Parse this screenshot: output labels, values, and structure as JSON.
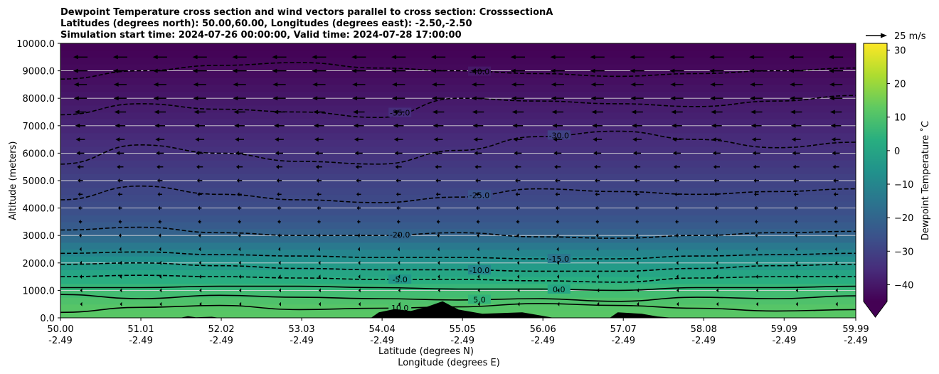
{
  "chart_data": {
    "type": "heatmap",
    "title_lines": [
      "Dewpoint Temperature cross section and wind vectors parallel to cross section: CrosssectionA",
      "Latitudes (degrees north): 50.00,60.00, Longitudes (degrees east): -2.50,-2.50",
      "Simulation start time: 2024-07-26 00:00:00, Valid time: 2024-07-28 17:00:00"
    ],
    "xlabel": "Latitude (degrees N)",
    "xlabel2": "Longitude (degrees E)",
    "ylabel": "Altitude (meters)",
    "xlim": [
      50.0,
      59.99
    ],
    "ylim": [
      0,
      10000
    ],
    "x_ticks": [
      {
        "lat": 50.0,
        "lat_label": "50.00",
        "lon_label": "-2.49"
      },
      {
        "lat": 51.01,
        "lat_label": "51.01",
        "lon_label": "-2.49"
      },
      {
        "lat": 52.02,
        "lat_label": "52.02",
        "lon_label": "-2.49"
      },
      {
        "lat": 53.03,
        "lat_label": "53.03",
        "lon_label": "-2.49"
      },
      {
        "lat": 54.04,
        "lat_label": "54.04",
        "lon_label": "-2.49"
      },
      {
        "lat": 55.05,
        "lat_label": "55.05",
        "lon_label": "-2.49"
      },
      {
        "lat": 56.06,
        "lat_label": "56.06",
        "lon_label": "-2.49"
      },
      {
        "lat": 57.07,
        "lat_label": "57.07",
        "lon_label": "-2.49"
      },
      {
        "lat": 58.08,
        "lat_label": "58.08",
        "lon_label": "-2.49"
      },
      {
        "lat": 59.09,
        "lat_label": "59.09",
        "lon_label": "-2.49"
      },
      {
        "lat": 59.99,
        "lat_label": "59.99",
        "lon_label": "-2.49"
      }
    ],
    "y_ticks": [
      {
        "value": 0,
        "label": "0.0"
      },
      {
        "value": 1000,
        "label": "1000.0"
      },
      {
        "value": 2000,
        "label": "2000.0"
      },
      {
        "value": 3000,
        "label": "3000.0"
      },
      {
        "value": 4000,
        "label": "4000.0"
      },
      {
        "value": 5000,
        "label": "5000.0"
      },
      {
        "value": 6000,
        "label": "6000.0"
      },
      {
        "value": 7000,
        "label": "7000.0"
      },
      {
        "value": 8000,
        "label": "8000.0"
      },
      {
        "value": 9000,
        "label": "9000.0"
      },
      {
        "value": 10000,
        "label": "10000.0"
      }
    ],
    "grid": "horizontal",
    "colormap": "viridis",
    "colorbar": {
      "label": "Dewpoint Temperature ˚C",
      "range": [
        -45,
        32
      ],
      "ticks": [
        {
          "value": -40,
          "label": "−40"
        },
        {
          "value": -30,
          "label": "−30"
        },
        {
          "value": -20,
          "label": "−20"
        },
        {
          "value": -10,
          "label": "−10"
        },
        {
          "value": 0,
          "label": "0"
        },
        {
          "value": 10,
          "label": "10"
        },
        {
          "value": 20,
          "label": "20"
        },
        {
          "value": 30,
          "label": "30"
        }
      ],
      "extend": "min"
    },
    "dewpoint_profile": [
      {
        "alt": 0,
        "value": 12
      },
      {
        "alt": 500,
        "value": 11
      },
      {
        "alt": 1000,
        "value": 7
      },
      {
        "alt": 1500,
        "value": 2
      },
      {
        "alt": 2000,
        "value": -5
      },
      {
        "alt": 2500,
        "value": -12
      },
      {
        "alt": 3000,
        "value": -20
      },
      {
        "alt": 3500,
        "value": -24
      },
      {
        "alt": 4000,
        "value": -27
      },
      {
        "alt": 5000,
        "value": -30
      },
      {
        "alt": 6000,
        "value": -34
      },
      {
        "alt": 7000,
        "value": -37
      },
      {
        "alt": 8000,
        "value": -40
      },
      {
        "alt": 9000,
        "value": -43
      },
      {
        "alt": 10000,
        "value": -45
      }
    ],
    "contours": [
      {
        "level": 10,
        "label": "10.0",
        "style": "solid",
        "alts": [
          200,
          380,
          450,
          300,
          350,
          400,
          520,
          450,
          350,
          250,
          300
        ]
      },
      {
        "level": 5,
        "label": "5.0",
        "style": "solid",
        "alts": [
          850,
          700,
          820,
          750,
          700,
          650,
          700,
          600,
          750,
          700,
          800
        ]
      },
      {
        "level": 0,
        "label": "0.0",
        "style": "solid",
        "alts": [
          1100,
          1100,
          1150,
          1150,
          1100,
          1050,
          1050,
          1000,
          1100,
          1100,
          1150
        ]
      },
      {
        "level": -5,
        "label": "-5.0",
        "style": "dashed",
        "alts": [
          1500,
          1550,
          1500,
          1450,
          1400,
          1400,
          1350,
          1300,
          1450,
          1500,
          1500
        ]
      },
      {
        "level": -10,
        "label": "-10.0",
        "style": "dashed",
        "alts": [
          1950,
          2000,
          1900,
          1800,
          1750,
          1750,
          1700,
          1700,
          1800,
          1900,
          1950
        ]
      },
      {
        "level": -15,
        "label": "-15.0",
        "style": "dashed",
        "alts": [
          2350,
          2400,
          2300,
          2250,
          2200,
          2200,
          2150,
          2150,
          2250,
          2300,
          2350
        ]
      },
      {
        "level": -20,
        "label": "-20.0",
        "style": "dashed",
        "alts": [
          3200,
          3300,
          3100,
          3000,
          3000,
          3100,
          2950,
          2900,
          3000,
          3100,
          3150
        ]
      },
      {
        "level": -25,
        "label": "-25.0",
        "style": "dashed",
        "alts": [
          4300,
          4800,
          4500,
          4300,
          4200,
          4400,
          4700,
          4600,
          4500,
          4600,
          4700
        ]
      },
      {
        "level": -30,
        "label": "-30.0",
        "style": "dashed",
        "alts": [
          5600,
          6300,
          6000,
          5700,
          5600,
          6100,
          6600,
          6800,
          6500,
          6200,
          6400
        ]
      },
      {
        "level": -35,
        "label": "-35.0",
        "style": "dashed",
        "alts": [
          7400,
          7800,
          7600,
          7500,
          7300,
          8000,
          7900,
          7800,
          7700,
          7900,
          8100
        ]
      },
      {
        "level": -40,
        "label": "-40.0",
        "style": "dashed",
        "alts": [
          8700,
          9000,
          9200,
          9300,
          9100,
          9000,
          8900,
          8800,
          8900,
          9000,
          9100
        ]
      }
    ],
    "wind_vectors": {
      "direction": "westward",
      "reference_label": "25 m/s",
      "reference_speed": 25,
      "levels": [
        {
          "alt": 9500,
          "speed": 22
        },
        {
          "alt": 9000,
          "speed": 22
        },
        {
          "alt": 8500,
          "speed": 20
        },
        {
          "alt": 8000,
          "speed": 20
        },
        {
          "alt": 7500,
          "speed": 18
        },
        {
          "alt": 7000,
          "speed": 16
        },
        {
          "alt": 6500,
          "speed": 14
        },
        {
          "alt": 6000,
          "speed": 12
        },
        {
          "alt": 5500,
          "speed": 10
        },
        {
          "alt": 5000,
          "speed": 8
        },
        {
          "alt": 4500,
          "speed": 7
        },
        {
          "alt": 4000,
          "speed": 6
        },
        {
          "alt": 3500,
          "speed": 5
        },
        {
          "alt": 3000,
          "speed": 4
        },
        {
          "alt": 2500,
          "speed": 3
        },
        {
          "alt": 2000,
          "speed": 2
        },
        {
          "alt": 1500,
          "speed": 2
        },
        {
          "alt": 1000,
          "speed": 1
        },
        {
          "alt": 500,
          "speed": 1
        }
      ]
    },
    "terrain": [
      {
        "lat": 50.0,
        "alt": 0
      },
      {
        "lat": 51.5,
        "alt": 0
      },
      {
        "lat": 51.6,
        "alt": 60
      },
      {
        "lat": 51.7,
        "alt": 20
      },
      {
        "lat": 51.9,
        "alt": 40
      },
      {
        "lat": 52.0,
        "alt": 0
      },
      {
        "lat": 53.9,
        "alt": 0
      },
      {
        "lat": 54.0,
        "alt": 200
      },
      {
        "lat": 54.2,
        "alt": 320
      },
      {
        "lat": 54.4,
        "alt": 250
      },
      {
        "lat": 54.6,
        "alt": 400
      },
      {
        "lat": 54.8,
        "alt": 600
      },
      {
        "lat": 55.0,
        "alt": 300
      },
      {
        "lat": 55.3,
        "alt": 150
      },
      {
        "lat": 55.8,
        "alt": 200
      },
      {
        "lat": 56.1,
        "alt": 50
      },
      {
        "lat": 56.2,
        "alt": 0
      },
      {
        "lat": 56.9,
        "alt": 0
      },
      {
        "lat": 57.0,
        "alt": 200
      },
      {
        "lat": 57.3,
        "alt": 150
      },
      {
        "lat": 57.5,
        "alt": 50
      },
      {
        "lat": 57.7,
        "alt": 0
      },
      {
        "lat": 59.99,
        "alt": 0
      }
    ]
  }
}
